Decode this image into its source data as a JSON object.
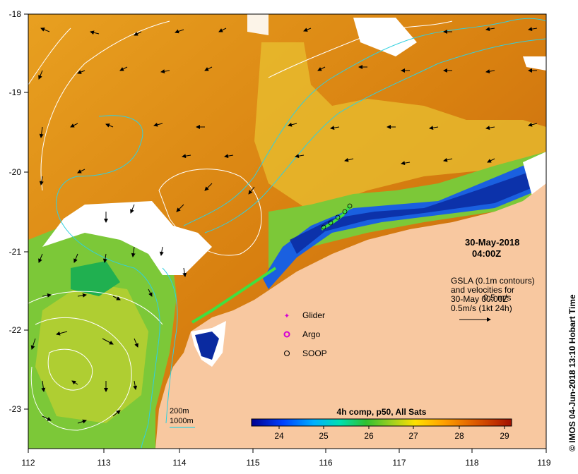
{
  "map": {
    "date_label": "30-May-2018",
    "time_label": "04:00Z",
    "x_ticks": [
      "112",
      "113",
      "114",
      "115",
      "116",
      "117",
      "118",
      "119"
    ],
    "y_ticks": [
      "-18",
      "-19",
      "-20",
      "-21",
      "-22",
      "-23"
    ],
    "gsla_lines": [
      "GSLA (0.1m contours)",
      "and velocities for",
      "30-May 00:00Z",
      "0.5m/s (1kt 24h)"
    ],
    "scale_arrow_label": "0.5 m/s",
    "legend_items": [
      {
        "label": "Glider",
        "symbol": "glider-marker",
        "color": "#d400d4"
      },
      {
        "label": "Argo",
        "symbol": "argo-marker",
        "color": "#d400d4"
      },
      {
        "label": "SOOP",
        "symbol": "soop-marker",
        "color": "#000000"
      }
    ],
    "isobath_legend": [
      "200m",
      "1000m"
    ],
    "colorbar": {
      "title": "4h comp, p50, All Sats",
      "ticks": [
        "24",
        "25",
        "26",
        "27",
        "28",
        "29"
      ],
      "range": [
        23.3,
        29.1
      ],
      "colors": [
        "#000090",
        "#0040ff",
        "#00b0ff",
        "#00e0b0",
        "#30c030",
        "#a0d020",
        "#ffe000",
        "#ffa000",
        "#e06000",
        "#c03000",
        "#a01000"
      ]
    },
    "credit": "© IMOS 04-Jun-2018 13:10 Hobart Time",
    "colors": {
      "land": "#f8c8a0",
      "warm_sst": "#e08a10",
      "cool_sst": "#3aaa3a",
      "isobath": "#30d0e0",
      "contour": "#ffffff"
    }
  }
}
